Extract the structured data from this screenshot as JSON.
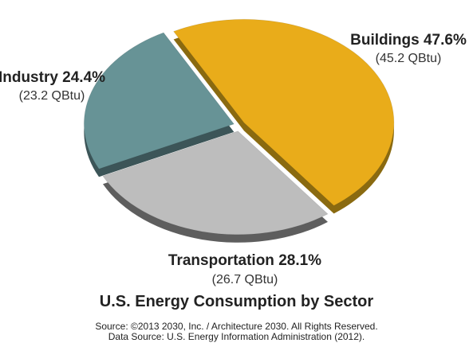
{
  "chart_data": {
    "type": "pie",
    "title": "U.S. Energy Consumption by Sector",
    "slices": [
      {
        "name": "Buildings",
        "percent": 47.6,
        "percent_label": "47.6%",
        "value": 45.2,
        "value_label": "(45.2 QBtu)",
        "color": "#E9AC1A",
        "side_color": "#8A6A10"
      },
      {
        "name": "Transportation",
        "percent": 28.1,
        "percent_label": "28.1%",
        "value": 26.7,
        "value_label": "(26.7 QBtu)",
        "color": "#BDBDBD",
        "side_color": "#5E5E5E"
      },
      {
        "name": "Industry",
        "percent": 24.4,
        "percent_label": "24.4%",
        "value": 23.2,
        "value_label": "(23.2 QBtu)",
        "color": "#679396",
        "side_color": "#3C5558"
      }
    ],
    "unit": "QBtu"
  },
  "source": {
    "line1": "Source: ©2013 2030, Inc. / Architecture 2030. All Rights Reserved.",
    "line2": "Data Source: U.S. Energy Information Administration (2012)."
  }
}
